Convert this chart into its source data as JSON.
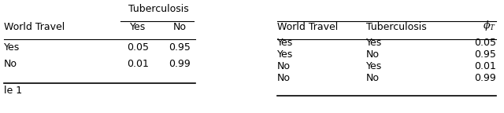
{
  "left_table": {
    "span_header": "Tuberculosis",
    "col_headers": [
      "World Travel",
      "Yes",
      "No"
    ],
    "rows": [
      [
        "Yes",
        "0.05",
        "0.95"
      ],
      [
        "No",
        "0.01",
        "0.99"
      ]
    ]
  },
  "right_table": {
    "headers": [
      "World Travel",
      "Tuberculosis",
      "$\\phi_T$"
    ],
    "rows": [
      [
        "Yes",
        "Yes",
        "0.05"
      ],
      [
        "Yes",
        "No",
        "0.95"
      ],
      [
        "No",
        "Yes",
        "0.01"
      ],
      [
        "No",
        "No",
        "0.99"
      ]
    ]
  },
  "caption": "le 1",
  "font_size": 9,
  "background_color": "#ffffff"
}
